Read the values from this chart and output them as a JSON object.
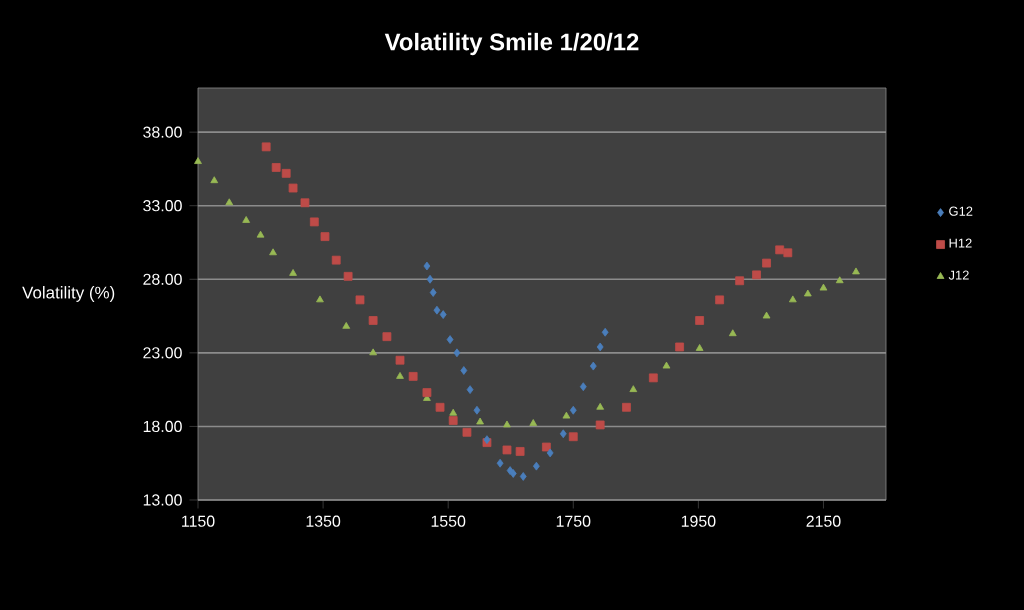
{
  "chart_data": {
    "type": "scatter",
    "title": "Volatility Smile 1/20/12",
    "ylabel": "Volatility (%)",
    "xlim": [
      1150,
      2250
    ],
    "ylim": [
      13,
      41
    ],
    "xticks": [
      1150,
      1350,
      1550,
      1750,
      1950,
      2150
    ],
    "yticks": [
      {
        "value": 13,
        "label": "13.00"
      },
      {
        "value": 18,
        "label": "18.00"
      },
      {
        "value": 23,
        "label": "23.00"
      },
      {
        "value": 28,
        "label": "28.00"
      },
      {
        "value": 33,
        "label": "33.00"
      },
      {
        "value": 38,
        "label": "38.00"
      }
    ],
    "grid": "y",
    "legend": "right",
    "series": [
      {
        "name": "G12",
        "color": "#4a7ebb",
        "marker": "diamond",
        "x": [
          1516,
          1521,
          1526,
          1532,
          1542,
          1553,
          1564,
          1575,
          1585,
          1596,
          1612,
          1633,
          1649,
          1654,
          1670,
          1691,
          1713,
          1734,
          1750,
          1766,
          1782,
          1793,
          1801
        ],
        "values": [
          28.9,
          28.0,
          27.1,
          25.9,
          25.6,
          23.9,
          23.0,
          21.8,
          20.5,
          19.1,
          17.1,
          15.5,
          15.0,
          14.8,
          14.6,
          15.3,
          16.2,
          17.5,
          19.1,
          20.7,
          22.1,
          23.4,
          24.4
        ]
      },
      {
        "name": "H12",
        "color": "#be4b48",
        "marker": "square",
        "x": [
          1259,
          1275,
          1291,
          1302,
          1321,
          1336,
          1353,
          1371,
          1390,
          1409,
          1430,
          1452,
          1473,
          1494,
          1516,
          1537,
          1558,
          1580,
          1612,
          1644,
          1665,
          1707,
          1750,
          1793,
          1835,
          1878,
          1920,
          1952,
          1984,
          2016,
          2043,
          2059,
          2080,
          2093
        ],
        "values": [
          37.0,
          35.6,
          35.2,
          34.2,
          33.2,
          31.9,
          30.9,
          29.3,
          28.2,
          26.6,
          25.2,
          24.1,
          22.5,
          21.4,
          20.3,
          19.3,
          18.4,
          17.6,
          16.9,
          16.4,
          16.3,
          16.6,
          17.3,
          18.1,
          19.3,
          21.3,
          23.4,
          25.2,
          26.6,
          27.9,
          28.3,
          29.1,
          30.0,
          29.8
        ]
      },
      {
        "name": "J12",
        "color": "#98b954",
        "marker": "triangle",
        "x": [
          1150,
          1176,
          1200,
          1227,
          1250,
          1270,
          1302,
          1345,
          1387,
          1430,
          1473,
          1516,
          1558,
          1601,
          1644,
          1686,
          1739,
          1793,
          1846,
          1899,
          1952,
          2005,
          2059,
          2101,
          2125,
          2150,
          2176,
          2202
        ],
        "values": [
          36.0,
          34.7,
          33.2,
          32.0,
          31.0,
          29.8,
          28.4,
          26.6,
          24.8,
          23.0,
          21.4,
          19.9,
          18.9,
          18.3,
          18.1,
          18.2,
          18.7,
          19.3,
          20.5,
          22.1,
          23.3,
          24.3,
          25.5,
          26.6,
          27.0,
          27.4,
          27.9,
          28.5
        ]
      }
    ]
  }
}
